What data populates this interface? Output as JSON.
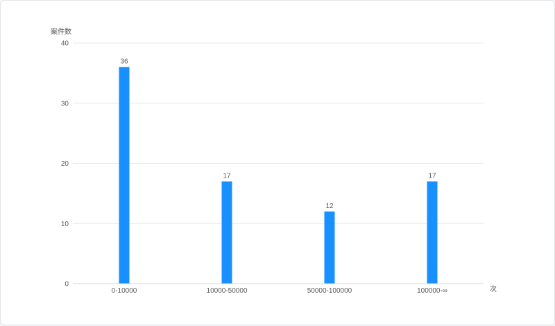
{
  "chart_data": {
    "type": "bar",
    "categories": [
      "0-10000",
      "10000-50000",
      "50000-100000",
      "100000-∞"
    ],
    "values": [
      36,
      17,
      12,
      17
    ],
    "data_labels": [
      "36",
      "17",
      "12",
      "17"
    ],
    "ylabel": "案件数",
    "xlabel": "次",
    "ylim": [
      0,
      40
    ],
    "yticks": [
      0,
      10,
      20,
      30,
      40
    ],
    "ytick_labels": [
      "0",
      "10",
      "20",
      "30",
      "40"
    ],
    "grid": true,
    "legend": "none",
    "bar_color": "#1890ff",
    "grid_color": "#e8e8e8",
    "axis_color": "#d9d9d9"
  }
}
